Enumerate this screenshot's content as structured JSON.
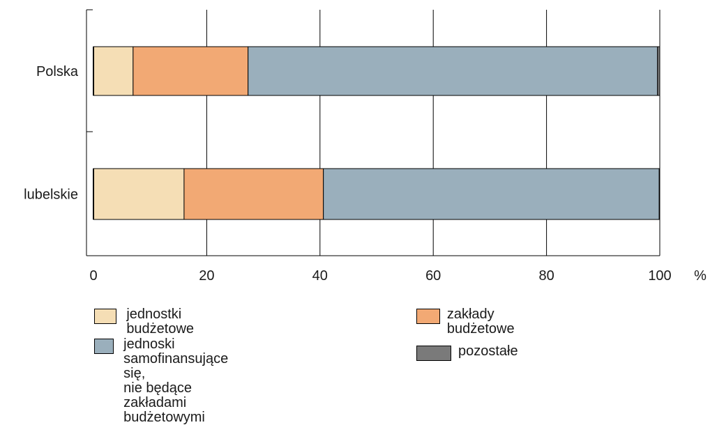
{
  "chart_data": {
    "type": "bar",
    "orientation": "horizontal",
    "stacked": true,
    "categories": [
      "Polska",
      "lubelskie"
    ],
    "series": [
      {
        "name": "jednostki budżetowe",
        "color": "#f5deb5",
        "values": [
          7,
          16
        ]
      },
      {
        "name": "zakłady budżetowe",
        "color": "#f2a974",
        "values": [
          20.3,
          24.6
        ]
      },
      {
        "name": "jednoski samofinansujące się,\nnie będące zakładami budżetowymi",
        "color": "#9aafbc",
        "values": [
          72.3,
          59.3
        ]
      },
      {
        "name": "pozostałe",
        "color": "#7a7a7a",
        "values": [
          0.4,
          0.1
        ]
      }
    ],
    "xlim": [
      0,
      100
    ],
    "xticks": [
      "0",
      "20",
      "40",
      "60",
      "80",
      "100"
    ],
    "xunit": "%",
    "grid": true,
    "legend_position": "bottom"
  },
  "legend": {
    "items": [
      {
        "label": "jednostki budżetowe",
        "color": "#f5deb5"
      },
      {
        "label": "zakłady budżetowe",
        "color": "#f2a974"
      },
      {
        "label": "jednoski samofinansujące się,\nnie będące zakładami budżetowymi",
        "color": "#9aafbc"
      },
      {
        "label": "pozostałe",
        "color": "#7a7a7a"
      }
    ]
  }
}
